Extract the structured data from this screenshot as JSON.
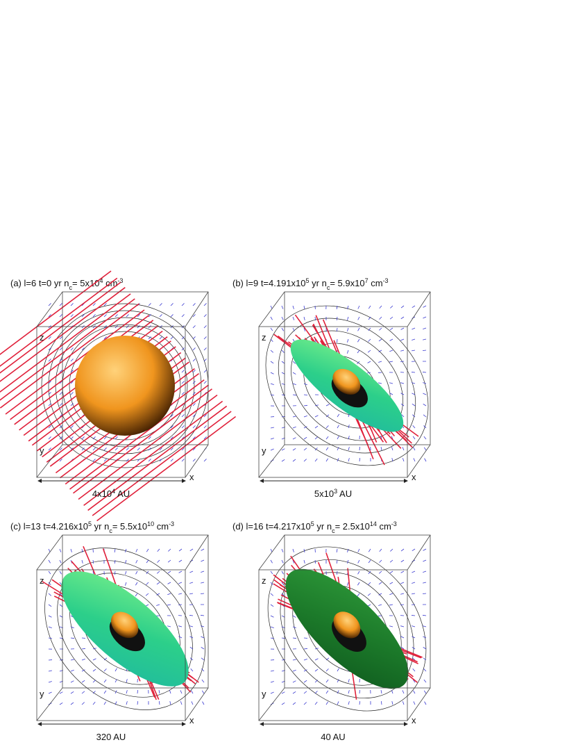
{
  "panels": [
    {
      "caption": [
        {
          "text": "(a) l=6  t=0 yr  n"
        },
        {
          "sub": "c"
        },
        {
          "text": "= 5x10"
        },
        {
          "sup": "4"
        },
        {
          "text": " cm"
        },
        {
          "sup": "-3"
        }
      ],
      "scale": [
        {
          "text": "4x10"
        },
        {
          "sup": "4"
        },
        {
          "text": " AU"
        }
      ],
      "axes": [
        "z",
        "y",
        "x"
      ]
    },
    {
      "caption": [
        {
          "text": "(b) l=9  t=4.191x10"
        },
        {
          "sup": "5"
        },
        {
          "text": " yr  n"
        },
        {
          "sub": "c"
        },
        {
          "text": "= 5.9x10"
        },
        {
          "sup": "7"
        },
        {
          "text": " cm"
        },
        {
          "sup": "-3"
        }
      ],
      "scale": [
        {
          "text": "5x10"
        },
        {
          "sup": "3"
        },
        {
          "text": " AU"
        }
      ],
      "axes": [
        "z",
        "y",
        "x"
      ]
    },
    {
      "caption": [
        {
          "text": "(c) l=13  t=4.216x10"
        },
        {
          "sup": "5"
        },
        {
          "text": " yr  n"
        },
        {
          "sub": "c"
        },
        {
          "text": "= 5.5x10"
        },
        {
          "sup": "10"
        },
        {
          "text": " cm"
        },
        {
          "sup": "-3"
        }
      ],
      "scale": [
        {
          "text": "320 AU"
        }
      ],
      "axes": [
        "z",
        "y",
        "x"
      ]
    },
    {
      "caption": [
        {
          "text": "(d) l=16  t=4.217x10"
        },
        {
          "sup": "5"
        },
        {
          "text": " yr  n"
        },
        {
          "sub": "c"
        },
        {
          "text": "= 2.5x10"
        },
        {
          "sup": "14"
        },
        {
          "text": " cm"
        },
        {
          "sup": "-3"
        }
      ],
      "scale": [
        {
          "text": "40 AU"
        }
      ],
      "axes": [
        "z",
        "y",
        "x"
      ]
    }
  ]
}
